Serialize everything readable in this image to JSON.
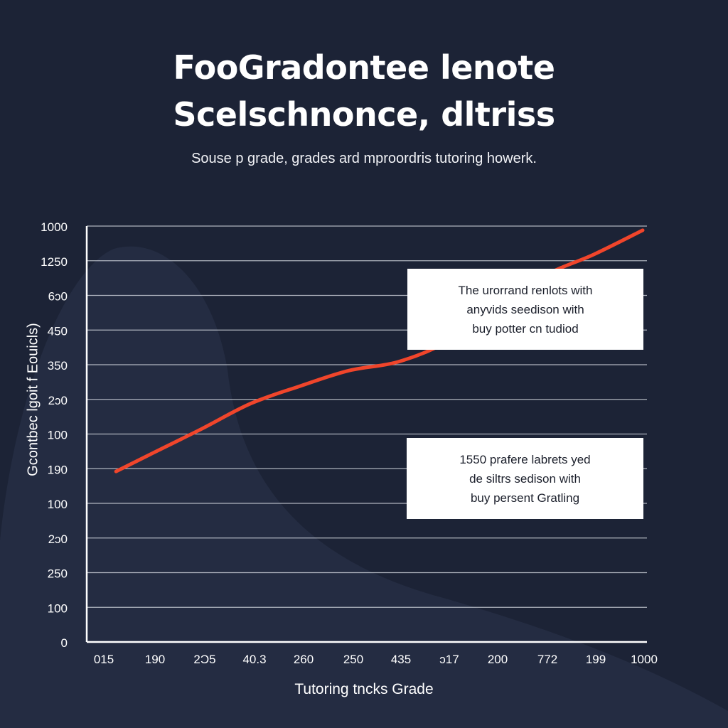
{
  "title_lines": [
    "FooGradontee lenote",
    "Scelschnonce, dltriss"
  ],
  "subtitle": "Souse p grade, grades ard mproordris tutoring howerk.",
  "chart_data": {
    "type": "line",
    "title": "FooGradontee lenote Scelschnonce, dltriss",
    "subtitle": "Souse p grade, grades ard mproordris tutoring howerk.",
    "xlabel": "Tutoring tncks Grade",
    "ylabel": "Gcontbec lgoit f Eouicls)",
    "x_tick_labels": [
      "015",
      "190",
      "2Ͻ5",
      "40.3",
      "260",
      "250",
      "435",
      "ᴐ17",
      "200",
      "772",
      "199",
      "1000"
    ],
    "y_tick_labels": [
      "1000",
      "1250",
      "6ᴐ0",
      "450",
      "350",
      "2ᴐ0",
      "100",
      "190",
      "100",
      "2ᴐ0",
      "250",
      "100",
      "0"
    ],
    "y_tick_positions": [
      12,
      11,
      10,
      9,
      8,
      7,
      6,
      5,
      4,
      3,
      2,
      1,
      0
    ],
    "x_range": [
      0,
      11
    ],
    "y_range": [
      0,
      12
    ],
    "grid": true,
    "series": [
      {
        "color": "#f0452b",
        "points": [
          [
            0.25,
            4.92
          ],
          [
            1.0,
            5.45
          ],
          [
            2.0,
            6.15
          ],
          [
            3.0,
            6.88
          ],
          [
            4.0,
            7.38
          ],
          [
            5.0,
            7.83
          ],
          [
            6.0,
            8.08
          ],
          [
            7.0,
            8.65
          ],
          [
            8.0,
            9.6
          ],
          [
            9.0,
            10.57
          ],
          [
            10.0,
            11.18
          ],
          [
            11.0,
            11.88
          ]
        ]
      }
    ],
    "annotations": [
      {
        "lines": [
          "The urorrand renlots with",
          "anyvids seedison with",
          "buy potter cn tudiod"
        ]
      },
      {
        "lines": [
          "1550 prafere labrets yed",
          "de siltrs sedison with",
          "buy persent Gratling"
        ]
      }
    ]
  },
  "colors": {
    "background": "#1c2336",
    "blob": "#252d43",
    "line": "#f0452b",
    "grid": "#c9cdd6",
    "text": "#ffffff",
    "note_bg": "#ffffff",
    "note_text": "#1b1f2b"
  }
}
